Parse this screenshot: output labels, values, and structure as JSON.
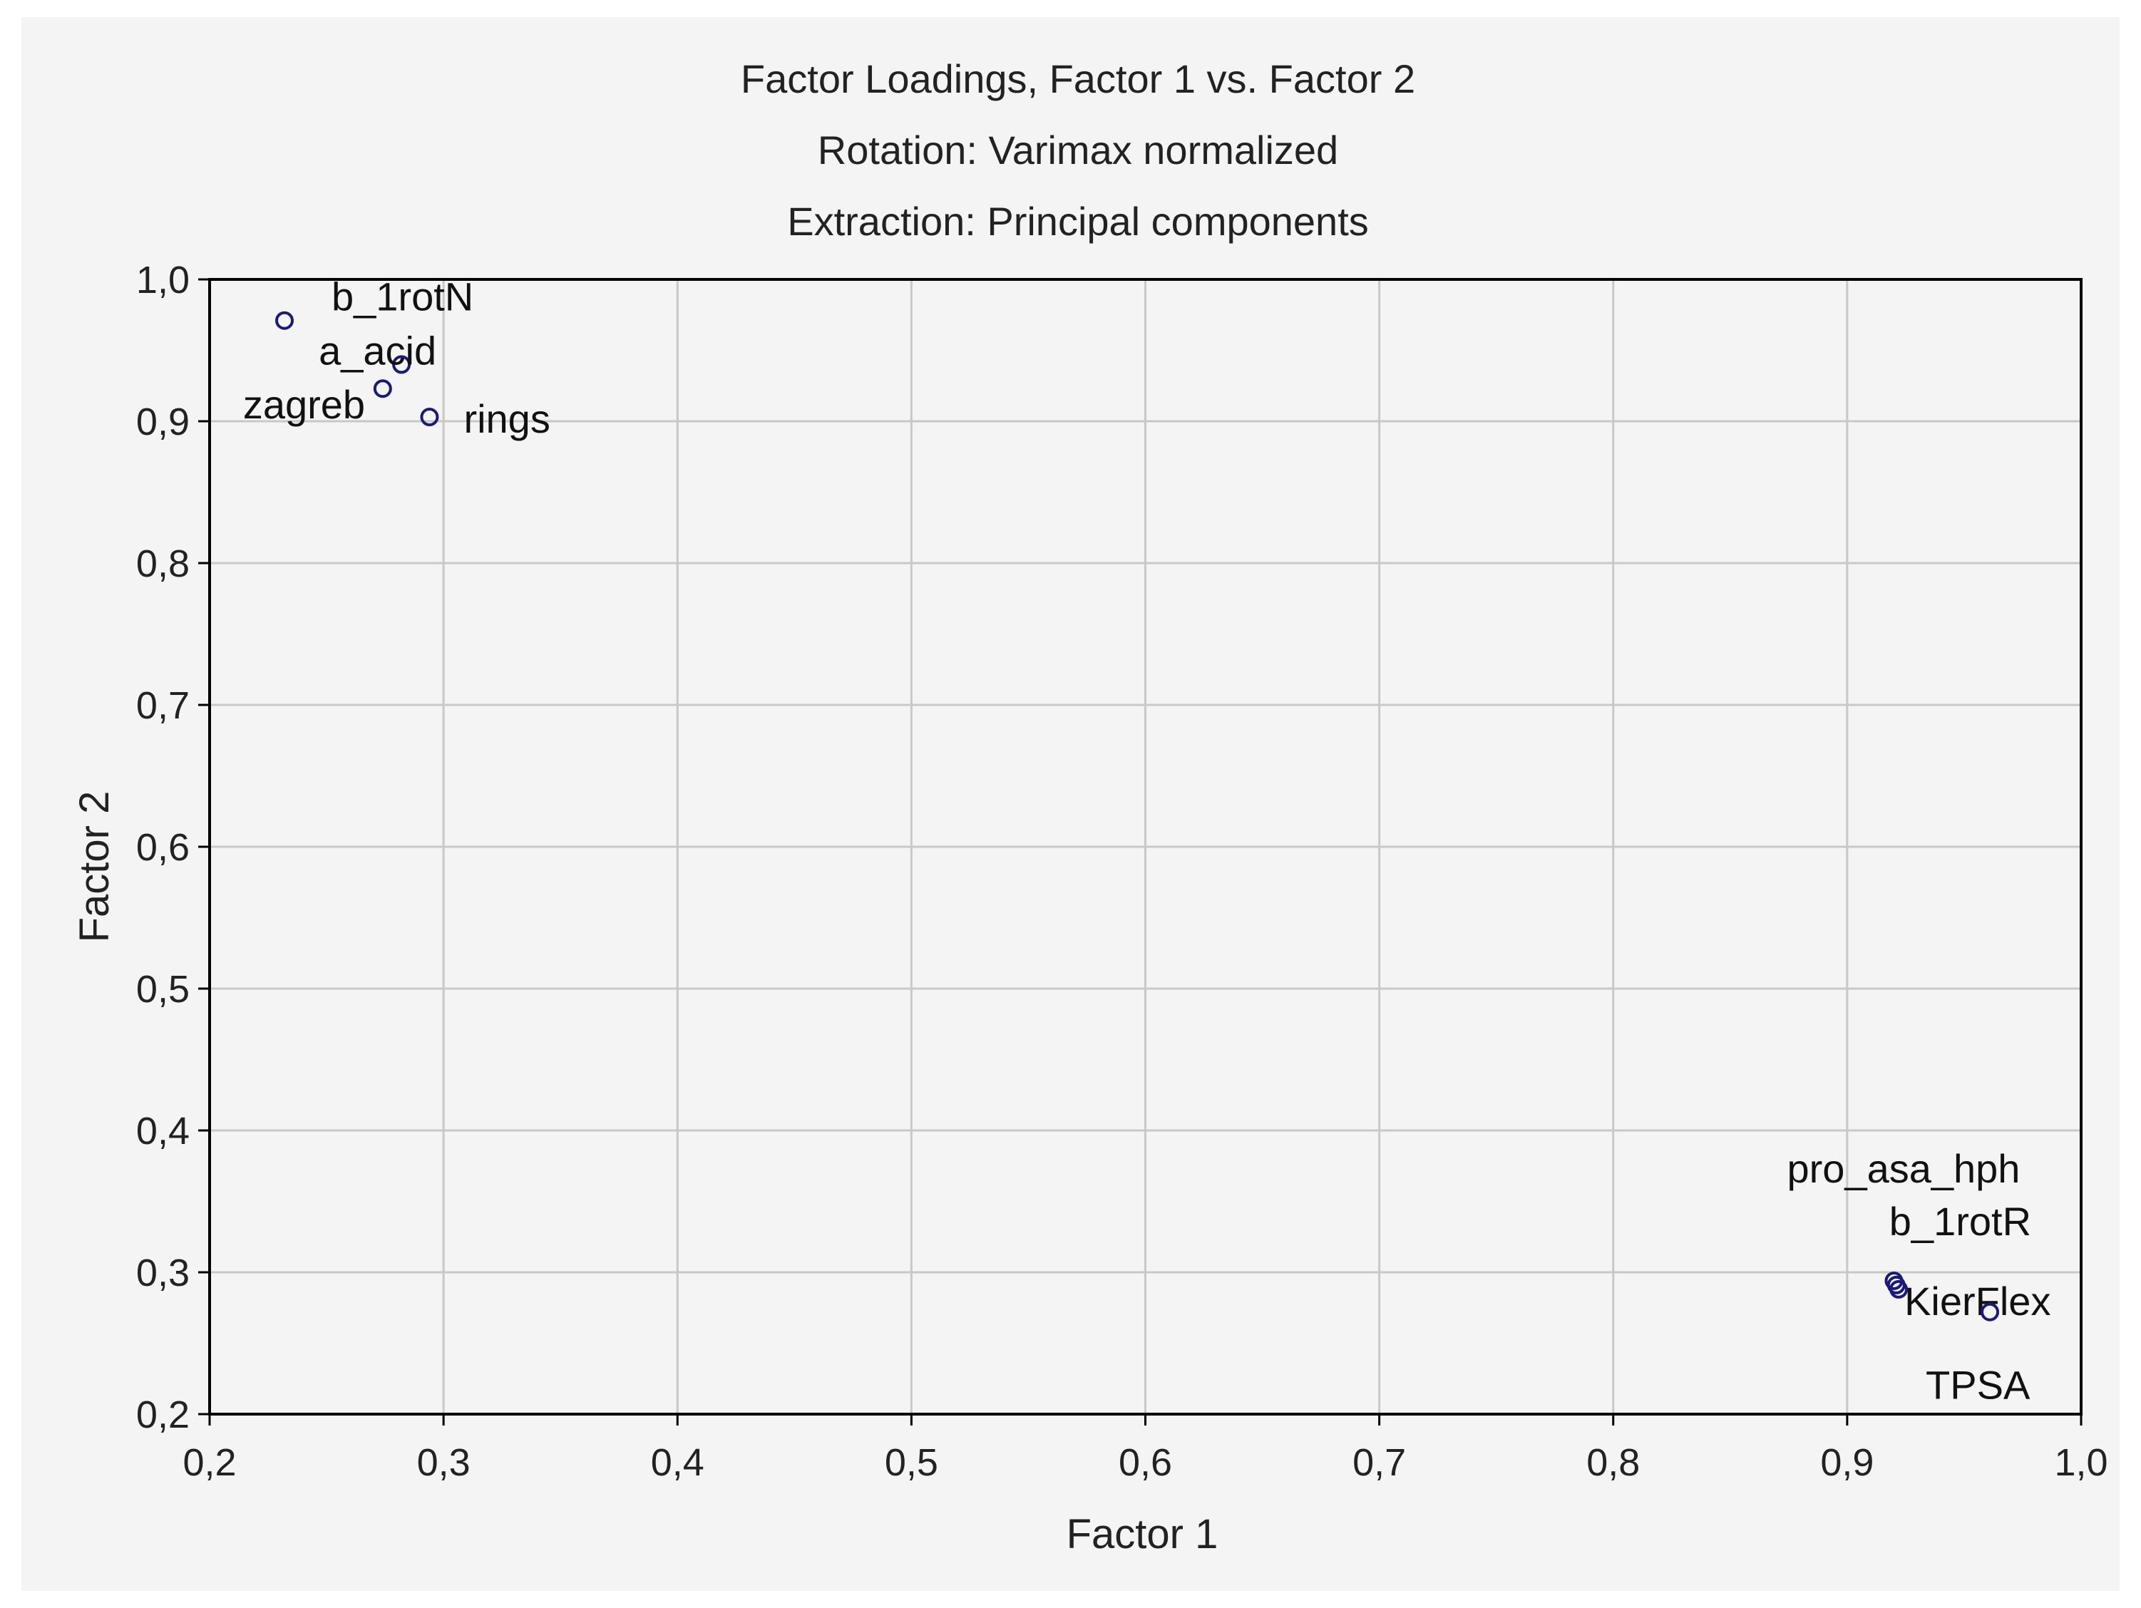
{
  "chart_data": {
    "type": "scatter",
    "title": "Factor Loadings, Factor 1 vs. Factor 2",
    "subtitle_lines": [
      "Rotation: Varimax normalized",
      "Extraction: Principal components"
    ],
    "xlabel": "Factor 1",
    "ylabel": "Factor 2",
    "xlim": [
      0.2,
      1.0
    ],
    "ylim": [
      0.2,
      1.0
    ],
    "x_ticks": [
      0.2,
      0.3,
      0.4,
      0.5,
      0.6,
      0.7,
      0.8,
      0.9,
      1.0
    ],
    "y_ticks": [
      0.2,
      0.3,
      0.4,
      0.5,
      0.6,
      0.7,
      0.8,
      0.9,
      1.0
    ],
    "x_tick_labels": [
      "0,2",
      "0,3",
      "0,4",
      "0,5",
      "0,6",
      "0,7",
      "0,8",
      "0,9",
      "1,0"
    ],
    "y_tick_labels": [
      "0,2",
      "0,3",
      "0,4",
      "0,5",
      "0,6",
      "0,7",
      "0,8",
      "0,9",
      "1,0"
    ],
    "grid": true,
    "points": [
      {
        "label": "b_1rotN",
        "x": 0.232,
        "y": 0.971
      },
      {
        "label": "a_acid",
        "x": 0.282,
        "y": 0.94
      },
      {
        "label": "zagreb",
        "x": 0.274,
        "y": 0.923
      },
      {
        "label": "rings",
        "x": 0.294,
        "y": 0.903
      },
      {
        "label": "pro_asa_hph",
        "x": 0.92,
        "y": 0.294
      },
      {
        "label": "b_1rotR",
        "x": 0.921,
        "y": 0.291
      },
      {
        "label": "KierFlex",
        "x": 0.922,
        "y": 0.288
      },
      {
        "label": "TPSA",
        "x": 0.961,
        "y": 0.272
      }
    ],
    "marker_color": "#1a1a7a",
    "grid_color": "#c8c8c8",
    "axis_color": "#000000"
  }
}
